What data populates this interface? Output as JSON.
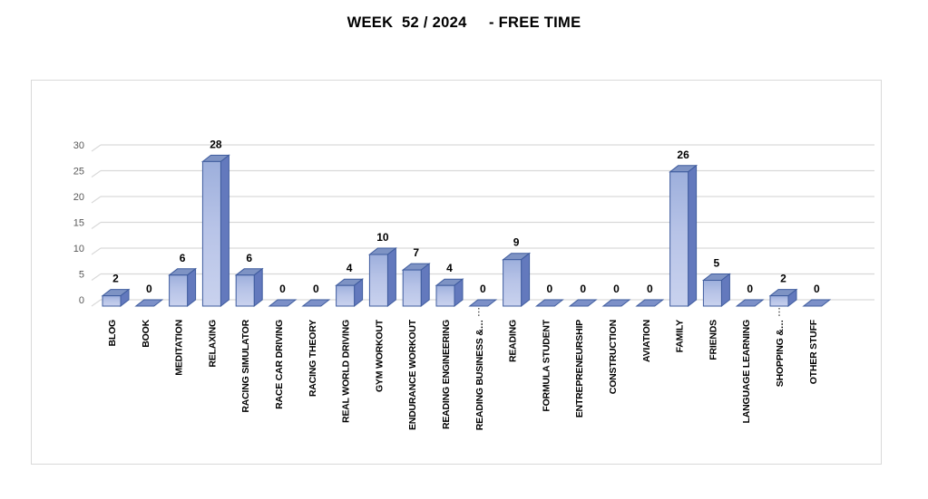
{
  "chart_data": {
    "type": "bar",
    "style": "excel-3d-column",
    "title": "WEEK  52 / 2024     - FREE TIME",
    "categories": [
      "BLOG",
      "BOOK",
      "MEDITATION",
      "RELAXING",
      "RACING SIMULATOR",
      "RACE CAR DRIVING",
      "RACING THEORY",
      "REAL WORLD DRIVING",
      "GYM WORKOUT",
      "ENDURANCE WORKOUT",
      "READING ENGINEERING",
      "READING BUSINESS &…",
      "READING",
      "FORMULA STUDENT",
      "ENTREPRENEURSHIP",
      "CONSTRUCTION",
      "AVIATION",
      "FAMILY",
      "FRIENDS",
      "LANGUAGE LEARNING",
      "SHOPPING &…",
      "OTHER STUFF"
    ],
    "values": [
      2,
      0,
      6,
      28,
      6,
      0,
      0,
      4,
      10,
      7,
      4,
      0,
      9,
      0,
      0,
      0,
      0,
      26,
      5,
      0,
      2,
      0
    ],
    "xlabel": "",
    "ylabel": "",
    "ylim": [
      0,
      30
    ],
    "yticks": [
      0,
      5,
      10,
      15,
      20,
      25,
      30
    ],
    "grid": true,
    "legend": "none",
    "truncated_label_leader_indices": [
      11,
      20
    ],
    "colors": {
      "bar_front_top": "#9dafdc",
      "bar_front_mid": "#b7c3e7",
      "bar_front_bottom": "#c9d2ee",
      "bar_top_face": "#7e93c4",
      "bar_side_face": "#6379bd",
      "bar_border": "#3f5c9e",
      "zero_bar_fill": "#7c90c8",
      "gridline": "#d9d9d9",
      "axis_label": "#595959",
      "value_label": "#000000",
      "category_label": "#000000",
      "title": "#000000",
      "panel_border": "#d9d9d9",
      "background": "#ffffff"
    }
  }
}
